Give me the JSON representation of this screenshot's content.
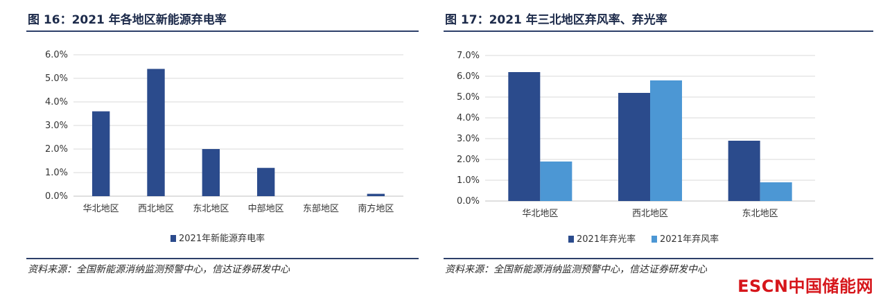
{
  "page": {
    "watermark_latin": "ESCN",
    "watermark_cjk": "中国储能网"
  },
  "left_panel": {
    "title": "图 16：2021 年各地区新能源弃电率",
    "source": "资料来源：全国新能源消纳监测预警中心，信达证券研发中心"
  },
  "right_panel": {
    "title": "图 17：2021 年三北地区弃风率、弃光率",
    "source": "资料来源：全国新能源消纳监测预警中心，信达证券研发中心"
  },
  "chart_data": [
    {
      "type": "bar",
      "categories": [
        "华北地区",
        "西北地区",
        "东北地区",
        "中部地区",
        "东部地区",
        "南方地区"
      ],
      "series": [
        {
          "name": "2021年新能源弃电率",
          "values": [
            3.6,
            5.4,
            2.0,
            1.2,
            0.0,
            0.1
          ]
        }
      ],
      "ylim": [
        0,
        6
      ],
      "yticks": [
        "0.0%",
        "1.0%",
        "2.0%",
        "3.0%",
        "4.0%",
        "5.0%",
        "6.0%"
      ],
      "grid": true,
      "legend": "bottom-center",
      "colors": [
        "#2b4b8c"
      ]
    },
    {
      "type": "bar",
      "categories": [
        "华北地区",
        "西北地区",
        "东北地区"
      ],
      "series": [
        {
          "name": "2021年弃光率",
          "values": [
            6.2,
            5.2,
            2.9
          ]
        },
        {
          "name": "2021年弃风率",
          "values": [
            1.9,
            5.8,
            0.9
          ]
        }
      ],
      "ylim": [
        0,
        7
      ],
      "yticks": [
        "0.0%",
        "1.0%",
        "2.0%",
        "3.0%",
        "4.0%",
        "5.0%",
        "6.0%",
        "7.0%"
      ],
      "grid": true,
      "legend": "bottom-center",
      "colors": [
        "#2b4b8c",
        "#4c97d4"
      ]
    }
  ]
}
